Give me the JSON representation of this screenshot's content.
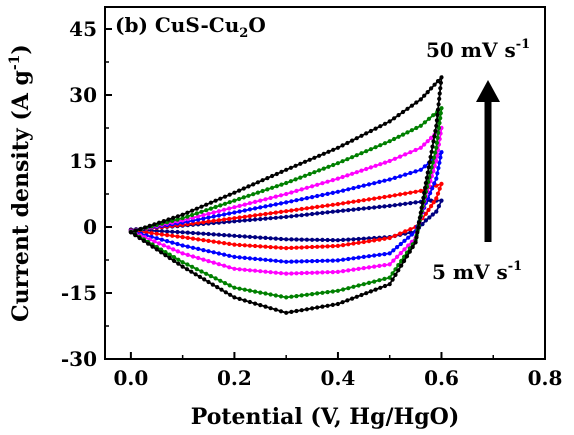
{
  "chart_data": {
    "type": "line",
    "panel_label": "(b) CuS-Cu",
    "panel_sub": "2",
    "panel_label_tail": "O",
    "xlabel": "Potential (V, Hg/HgO)",
    "ylabel_main": "Current density (A g",
    "ylabel_sup": "-1",
    "ylabel_tail": ")",
    "xlim": [
      -0.05,
      0.8
    ],
    "ylim": [
      -30,
      50
    ],
    "xticks": [
      0.0,
      0.2,
      0.4,
      0.6,
      0.8
    ],
    "xtick_labels": [
      "0.0",
      "0.2",
      "0.4",
      "0.6",
      "0.8"
    ],
    "yticks": [
      -30,
      -15,
      0,
      15,
      30,
      45
    ],
    "ytick_labels": [
      "-30",
      "-15",
      "0",
      "15",
      "30",
      "45"
    ],
    "annotation_top": "50 mV s",
    "annotation_top_sup": "-1",
    "annotation_bottom": "5 mV s",
    "annotation_bottom_sup": "-1",
    "series": [
      {
        "color": "#000080",
        "anodic": [
          [
            0,
            -0.6
          ],
          [
            0.1,
            0.3
          ],
          [
            0.2,
            1.3
          ],
          [
            0.3,
            2.3
          ],
          [
            0.4,
            3.6
          ],
          [
            0.5,
            4.8
          ],
          [
            0.55,
            5.6
          ],
          [
            0.58,
            6.0
          ],
          [
            0.6,
            6.0
          ]
        ],
        "cathodic": [
          [
            0.6,
            6.0
          ],
          [
            0.59,
            3.5
          ],
          [
            0.57,
            1.5
          ],
          [
            0.55,
            -1.0
          ],
          [
            0.5,
            -2.3
          ],
          [
            0.4,
            -3.0
          ],
          [
            0.3,
            -2.8
          ],
          [
            0.2,
            -2.0
          ],
          [
            0.1,
            -1.2
          ],
          [
            0,
            -0.6
          ]
        ]
      },
      {
        "color": "#ff0000",
        "anodic": [
          [
            0,
            -0.8
          ],
          [
            0.1,
            0.5
          ],
          [
            0.2,
            2.0
          ],
          [
            0.3,
            3.6
          ],
          [
            0.4,
            5.2
          ],
          [
            0.5,
            7.0
          ],
          [
            0.56,
            8.2
          ],
          [
            0.6,
            9.8
          ]
        ],
        "cathodic": [
          [
            0.6,
            9.8
          ],
          [
            0.59,
            6.5
          ],
          [
            0.57,
            3.0
          ],
          [
            0.55,
            0.0
          ],
          [
            0.5,
            -2.5
          ],
          [
            0.4,
            -4.3
          ],
          [
            0.3,
            -4.8
          ],
          [
            0.2,
            -4.0
          ],
          [
            0.1,
            -2.3
          ],
          [
            0,
            -0.8
          ]
        ]
      },
      {
        "color": "#0000ff",
        "anodic": [
          [
            0,
            -0.9
          ],
          [
            0.1,
            1.0
          ],
          [
            0.2,
            3.3
          ],
          [
            0.3,
            5.6
          ],
          [
            0.4,
            8.0
          ],
          [
            0.5,
            10.8
          ],
          [
            0.56,
            13.0
          ],
          [
            0.6,
            17.0
          ]
        ],
        "cathodic": [
          [
            0.6,
            17.0
          ],
          [
            0.59,
            11.0
          ],
          [
            0.57,
            5.5
          ],
          [
            0.55,
            -1.0
          ],
          [
            0.5,
            -6.0
          ],
          [
            0.4,
            -7.6
          ],
          [
            0.3,
            -7.9
          ],
          [
            0.2,
            -6.8
          ],
          [
            0.1,
            -4.2
          ],
          [
            0,
            -0.9
          ]
        ]
      },
      {
        "color": "#ff00ff",
        "anodic": [
          [
            0,
            -1.0
          ],
          [
            0.1,
            1.5
          ],
          [
            0.2,
            4.5
          ],
          [
            0.3,
            7.5
          ],
          [
            0.4,
            11.0
          ],
          [
            0.5,
            15.0
          ],
          [
            0.56,
            18.0
          ],
          [
            0.6,
            22.5
          ]
        ],
        "cathodic": [
          [
            0.6,
            22.5
          ],
          [
            0.59,
            15.0
          ],
          [
            0.57,
            7.0
          ],
          [
            0.55,
            -2.5
          ],
          [
            0.5,
            -8.5
          ],
          [
            0.4,
            -10.2
          ],
          [
            0.3,
            -10.6
          ],
          [
            0.2,
            -9.5
          ],
          [
            0.1,
            -6.0
          ],
          [
            0,
            -1.0
          ]
        ]
      },
      {
        "color": "#008000",
        "anodic": [
          [
            0,
            -1.1
          ],
          [
            0.1,
            2.0
          ],
          [
            0.2,
            6.0
          ],
          [
            0.3,
            10.0
          ],
          [
            0.4,
            14.5
          ],
          [
            0.5,
            19.5
          ],
          [
            0.56,
            23.0
          ],
          [
            0.6,
            27.0
          ]
        ],
        "cathodic": [
          [
            0.6,
            27.0
          ],
          [
            0.59,
            18.0
          ],
          [
            0.57,
            8.0
          ],
          [
            0.55,
            -3.0
          ],
          [
            0.5,
            -11.5
          ],
          [
            0.4,
            -14.5
          ],
          [
            0.3,
            -16.0
          ],
          [
            0.2,
            -13.8
          ],
          [
            0.1,
            -8.0
          ],
          [
            0,
            -1.1
          ]
        ]
      },
      {
        "color": "#000000",
        "anodic": [
          [
            0,
            -1.2
          ],
          [
            0.1,
            2.8
          ],
          [
            0.2,
            7.8
          ],
          [
            0.3,
            13.0
          ],
          [
            0.4,
            18.0
          ],
          [
            0.5,
            24.0
          ],
          [
            0.56,
            29.0
          ],
          [
            0.6,
            34.0
          ]
        ],
        "cathodic": [
          [
            0.6,
            34.0
          ],
          [
            0.59,
            23.0
          ],
          [
            0.57,
            10.0
          ],
          [
            0.55,
            -3.5
          ],
          [
            0.5,
            -13.0
          ],
          [
            0.4,
            -17.5
          ],
          [
            0.3,
            -19.5
          ],
          [
            0.2,
            -16.0
          ],
          [
            0.1,
            -9.0
          ],
          [
            0,
            -1.2
          ]
        ]
      }
    ]
  }
}
